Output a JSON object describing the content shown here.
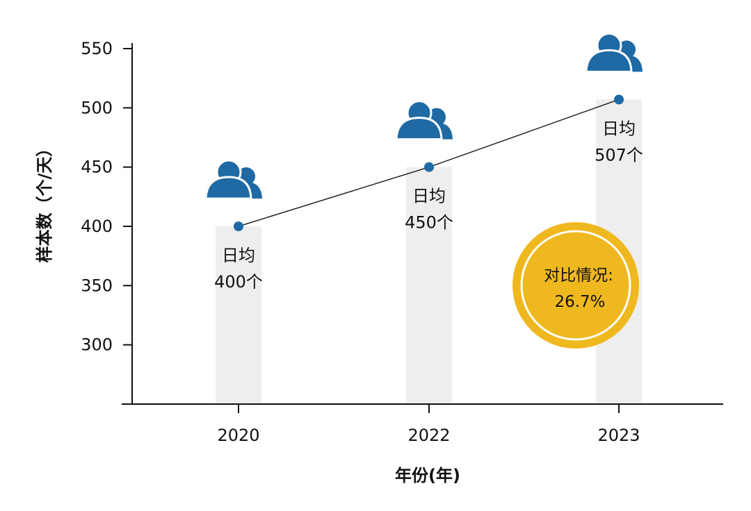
{
  "chart_data": {
    "type": "bar",
    "categories": [
      "2020",
      "2022",
      "2023"
    ],
    "values": [
      400,
      450,
      507
    ],
    "series": [
      {
        "name": "",
        "type": "bar",
        "values": [
          400,
          450,
          507
        ]
      },
      {
        "name": "",
        "type": "line",
        "values": [
          400,
          450,
          507
        ]
      }
    ],
    "point_labels": [
      {
        "line1": "日均",
        "line2": "400个"
      },
      {
        "line1": "日均",
        "line2": "450个"
      },
      {
        "line1": "日均",
        "line2": "507个"
      }
    ],
    "title": "",
    "xlabel": "年份(年)",
    "ylabel": "样本数（个/天）",
    "ylim": [
      250,
      550
    ],
    "yticks": [
      300,
      350,
      400,
      450,
      500,
      550
    ],
    "grid": false,
    "legend": "none",
    "annotation": {
      "label": "对比情况:",
      "value": "26.7%"
    },
    "icons": [
      "people-icon",
      "people-icon",
      "people-icon"
    ],
    "colors": {
      "bar": "#eeeeee",
      "line": "#222222",
      "point": "#1f6aa5",
      "icon": "#1f6aa5",
      "badge": "#f0b81f",
      "badge_ring": "#ffffff"
    }
  }
}
